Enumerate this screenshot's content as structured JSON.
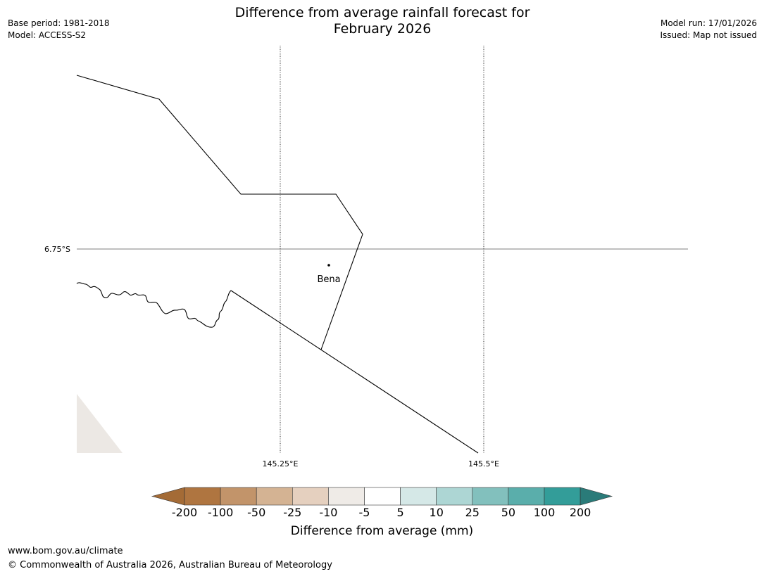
{
  "title": {
    "line1": "Difference from average rainfall forecast for",
    "line2": "February 2026"
  },
  "meta_left": {
    "base_period": "Base period: 1981-2018",
    "model": "Model: ACCESS-S2"
  },
  "meta_right": {
    "model_run": "Model run: 17/01/2026",
    "issued": "Issued: Map not issued"
  },
  "map": {
    "lat_label": "6.75°S",
    "lon_labels": [
      "145.25°E",
      "145.5°E"
    ],
    "place": "Bena"
  },
  "colorbar": {
    "label": "Difference from average (mm)",
    "ticks": [
      "-200",
      "-100",
      "-50",
      "-25",
      "-10",
      "-5",
      "5",
      "10",
      "25",
      "50",
      "100",
      "200"
    ],
    "colors": [
      "#a46b36",
      "#af7540",
      "#c2946a",
      "#d4b393",
      "#e5d0bf",
      "#efebe7",
      "#ffffff",
      "#d5e8e7",
      "#add6d4",
      "#82c0bd",
      "#5aaeab",
      "#339d99",
      "#2a7b79"
    ]
  },
  "footer": {
    "url": "www.bom.gov.au/climate",
    "copyright": "© Commonwealth of Australia 2026, Australian Bureau of Meteorology"
  }
}
